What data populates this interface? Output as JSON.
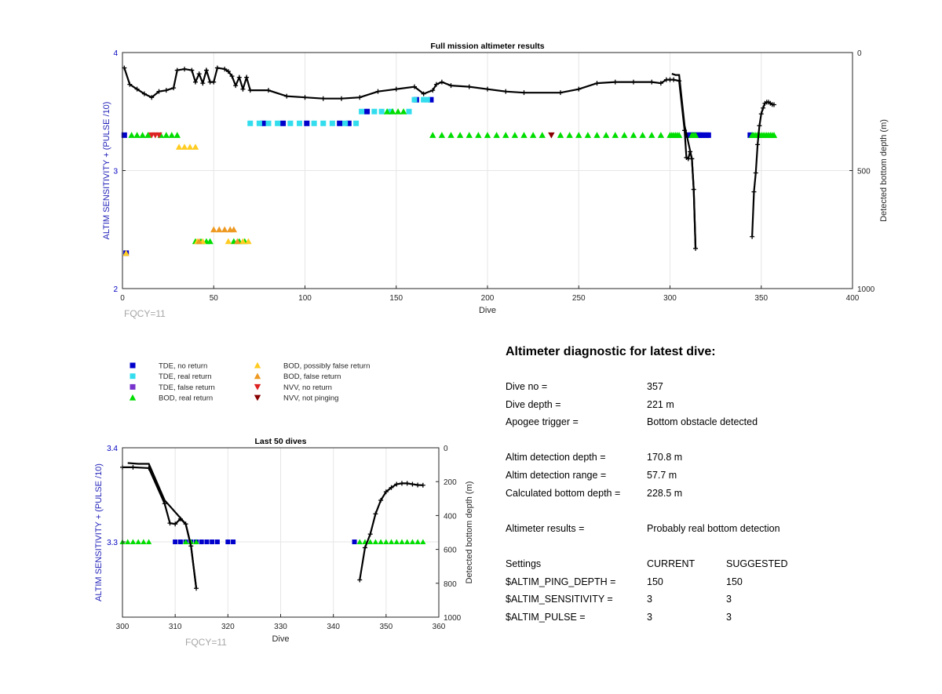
{
  "charts": [
    {
      "id": "full",
      "title": "Full mission altimeter results",
      "xlabel": "Dive",
      "ylabel_left": "ALTIM SENSITIVITY + (PULSE /10)",
      "ylabel_right": "Detected bottom depth (m)",
      "xlim": [
        0,
        400
      ],
      "xticks": [
        0,
        50,
        100,
        150,
        200,
        250,
        300,
        350,
        400
      ],
      "ylim_left": [
        2,
        4
      ],
      "yticks_left": [
        2,
        3,
        4
      ],
      "ylim_right": [
        0,
        1000
      ],
      "yticks_right": [
        0,
        500,
        1000
      ],
      "fqcy_label": "FQCY=11"
    },
    {
      "id": "last50",
      "title": "Last 50 dives",
      "xlabel": "Dive",
      "ylabel_left": "ALTIM SENSITIVITY + (PULSE /10)",
      "ylabel_right": "Detected bottom depth (m)",
      "xlim": [
        300,
        360
      ],
      "xticks": [
        300,
        310,
        320,
        330,
        340,
        350,
        360
      ],
      "ylim_left": [
        3.22,
        3.4
      ],
      "yticks_left": [
        3.3,
        3.4
      ],
      "ylim_right": [
        0,
        1000
      ],
      "yticks_right": [
        0,
        200,
        400,
        600,
        800,
        1000
      ],
      "fqcy_label": "FQCY=11"
    }
  ],
  "chart_data": {
    "type": "scatter",
    "x_label": "Dive",
    "series": [
      {
        "name": "TDE, no return",
        "marker": "square",
        "color": "#0000cc",
        "points": [
          [
            1,
            3.3
          ],
          [
            77,
            3.4
          ],
          [
            88,
            3.4
          ],
          [
            101,
            3.4
          ],
          [
            119,
            3.4
          ],
          [
            124,
            3.4
          ],
          [
            134,
            3.5
          ],
          [
            161,
            3.6
          ],
          [
            169,
            3.6
          ],
          [
            310,
            3.3
          ],
          [
            311,
            3.3
          ],
          [
            312,
            3.3
          ],
          [
            313,
            3.3
          ],
          [
            314,
            3.3
          ],
          [
            315,
            3.3
          ],
          [
            316,
            3.3
          ],
          [
            317,
            3.3
          ],
          [
            318,
            3.3
          ],
          [
            320,
            3.3
          ],
          [
            321,
            3.3
          ],
          [
            344,
            3.3
          ],
          [
            2,
            2.3
          ]
        ]
      },
      {
        "name": "TDE, real return",
        "marker": "square",
        "color": "#33ddee",
        "points": [
          [
            70,
            3.4
          ],
          [
            75,
            3.4
          ],
          [
            80,
            3.4
          ],
          [
            85,
            3.4
          ],
          [
            92,
            3.4
          ],
          [
            97,
            3.4
          ],
          [
            105,
            3.4
          ],
          [
            110,
            3.4
          ],
          [
            115,
            3.4
          ],
          [
            122,
            3.4
          ],
          [
            128,
            3.4
          ],
          [
            131,
            3.5
          ],
          [
            138,
            3.5
          ],
          [
            142,
            3.5
          ],
          [
            147,
            3.5
          ],
          [
            157,
            3.5
          ],
          [
            160,
            3.6
          ],
          [
            165,
            3.6
          ],
          [
            167,
            3.6
          ]
        ]
      },
      {
        "name": "TDE, false return",
        "marker": "square",
        "color": "#7733cc",
        "points": []
      },
      {
        "name": "BOD, real return",
        "marker": "triangle-up",
        "color": "#00dd00",
        "points": [
          [
            5,
            3.3
          ],
          [
            8,
            3.3
          ],
          [
            11,
            3.3
          ],
          [
            14,
            3.3
          ],
          [
            21,
            3.3
          ],
          [
            24,
            3.3
          ],
          [
            27,
            3.3
          ],
          [
            30,
            3.3
          ],
          [
            40,
            2.4
          ],
          [
            43,
            2.4
          ],
          [
            46,
            2.4
          ],
          [
            48,
            2.4
          ],
          [
            61,
            2.4
          ],
          [
            64,
            2.4
          ],
          [
            67,
            2.4
          ],
          [
            145,
            3.5
          ],
          [
            148,
            3.5
          ],
          [
            151,
            3.5
          ],
          [
            154,
            3.5
          ],
          [
            170,
            3.3
          ],
          [
            175,
            3.3
          ],
          [
            180,
            3.3
          ],
          [
            185,
            3.3
          ],
          [
            190,
            3.3
          ],
          [
            195,
            3.3
          ],
          [
            200,
            3.3
          ],
          [
            205,
            3.3
          ],
          [
            210,
            3.3
          ],
          [
            215,
            3.3
          ],
          [
            220,
            3.3
          ],
          [
            225,
            3.3
          ],
          [
            230,
            3.3
          ],
          [
            240,
            3.3
          ],
          [
            245,
            3.3
          ],
          [
            250,
            3.3
          ],
          [
            255,
            3.3
          ],
          [
            260,
            3.3
          ],
          [
            265,
            3.3
          ],
          [
            270,
            3.3
          ],
          [
            275,
            3.3
          ],
          [
            280,
            3.3
          ],
          [
            285,
            3.3
          ],
          [
            290,
            3.3
          ],
          [
            295,
            3.3
          ],
          [
            300,
            3.3
          ],
          [
            301,
            3.3
          ],
          [
            302,
            3.3
          ],
          [
            303,
            3.3
          ],
          [
            304,
            3.3
          ],
          [
            305,
            3.3
          ],
          [
            312,
            3.3
          ],
          [
            313,
            3.3
          ],
          [
            314,
            3.3
          ],
          [
            345,
            3.3
          ],
          [
            346,
            3.3
          ],
          [
            347,
            3.3
          ],
          [
            348,
            3.3
          ],
          [
            349,
            3.3
          ],
          [
            350,
            3.3
          ],
          [
            351,
            3.3
          ],
          [
            352,
            3.3
          ],
          [
            353,
            3.3
          ],
          [
            354,
            3.3
          ],
          [
            355,
            3.3
          ],
          [
            356,
            3.3
          ],
          [
            357,
            3.3
          ]
        ]
      },
      {
        "name": "BOD, possibly false return",
        "marker": "triangle-up",
        "color": "#ffcc22",
        "points": [
          [
            2,
            2.3
          ],
          [
            31,
            3.2
          ],
          [
            34,
            3.2
          ],
          [
            37,
            3.2
          ],
          [
            40,
            3.2
          ],
          [
            41,
            2.4
          ],
          [
            44,
            2.4
          ],
          [
            58,
            2.4
          ],
          [
            66,
            2.4
          ],
          [
            69,
            2.4
          ]
        ]
      },
      {
        "name": "BOD, false return",
        "marker": "triangle-up",
        "color": "#ee9922",
        "points": [
          [
            50,
            2.5
          ],
          [
            53,
            2.5
          ],
          [
            56,
            2.5
          ],
          [
            59,
            2.5
          ],
          [
            61,
            2.5
          ],
          [
            42,
            2.4
          ],
          [
            63,
            2.4
          ]
        ]
      },
      {
        "name": "NVV, no return",
        "marker": "triangle-down",
        "color": "#dd2222",
        "points": [
          [
            16,
            3.3
          ],
          [
            18,
            3.3
          ],
          [
            20,
            3.3
          ]
        ]
      },
      {
        "name": "NVV, not pinging",
        "marker": "triangle-down",
        "color": "#880000",
        "points": [
          [
            235,
            3.3
          ]
        ]
      },
      {
        "name": "Detected bottom depth",
        "marker": "plus-line",
        "color": "#000000",
        "axis": "right",
        "points": [
          [
            1,
            65
          ],
          [
            4,
            135
          ],
          [
            8,
            155
          ],
          [
            12,
            175
          ],
          [
            16,
            190
          ],
          [
            20,
            165
          ],
          [
            24,
            160
          ],
          [
            28,
            150
          ],
          [
            30,
            75
          ],
          [
            34,
            70
          ],
          [
            38,
            75
          ],
          [
            40,
            125
          ],
          [
            42,
            90
          ],
          [
            44,
            130
          ],
          [
            46,
            75
          ],
          [
            48,
            125
          ],
          [
            50,
            125
          ],
          [
            52,
            65
          ],
          [
            56,
            70
          ],
          [
            58,
            80
          ],
          [
            60,
            100
          ],
          [
            62,
            140
          ],
          [
            64,
            105
          ],
          [
            66,
            155
          ],
          [
            68,
            105
          ],
          [
            70,
            160
          ],
          [
            80,
            160
          ],
          [
            90,
            185
          ],
          [
            100,
            190
          ],
          [
            110,
            195
          ],
          [
            120,
            195
          ],
          [
            130,
            190
          ],
          [
            140,
            165
          ],
          [
            150,
            155
          ],
          [
            160,
            145
          ],
          [
            165,
            175
          ],
          [
            170,
            160
          ],
          [
            172,
            135
          ],
          [
            175,
            125
          ],
          [
            180,
            140
          ],
          [
            190,
            145
          ],
          [
            200,
            155
          ],
          [
            210,
            165
          ],
          [
            220,
            170
          ],
          [
            240,
            170
          ],
          [
            250,
            155
          ],
          [
            260,
            130
          ],
          [
            270,
            125
          ],
          [
            280,
            125
          ],
          [
            290,
            125
          ],
          [
            295,
            130
          ],
          [
            298,
            115
          ],
          [
            300,
            115
          ],
          [
            302,
            115
          ],
          [
            305,
            120
          ],
          [
            308,
            330
          ],
          [
            309,
            445
          ],
          [
            310,
            450
          ],
          [
            311,
            420
          ],
          [
            312,
            450
          ],
          [
            313,
            580
          ],
          [
            314,
            830
          ],
          [
            345,
            780
          ],
          [
            346,
            590
          ],
          [
            347,
            510
          ],
          [
            348,
            390
          ],
          [
            349,
            310
          ],
          [
            350,
            260
          ],
          [
            351,
            235
          ],
          [
            352,
            215
          ],
          [
            353,
            210
          ],
          [
            354,
            210
          ],
          [
            355,
            215
          ],
          [
            356,
            220
          ],
          [
            357,
            221
          ]
        ]
      }
    ],
    "second_series_line": [
      [
        301,
        90
      ],
      [
        303,
        95
      ],
      [
        305,
        95
      ],
      [
        308,
        310
      ],
      [
        312,
        450
      ],
      [
        313,
        580
      ],
      [
        314,
        830
      ]
    ],
    "ylim_left": [
      2,
      4
    ],
    "ylim_right": [
      0,
      1000
    ]
  },
  "legend": [
    {
      "label": "TDE, no return",
      "marker": "square",
      "color": "#0000cc"
    },
    {
      "label": "TDE, real return",
      "marker": "square",
      "color": "#33ddee"
    },
    {
      "label": "TDE, false return",
      "marker": "square",
      "color": "#7733cc"
    },
    {
      "label": "BOD, real return",
      "marker": "triangle-up",
      "color": "#00dd00"
    },
    {
      "label": "BOD, possibly false return",
      "marker": "triangle-up",
      "color": "#ffcc22"
    },
    {
      "label": "BOD, false return",
      "marker": "triangle-up",
      "color": "#ee9922"
    },
    {
      "label": "NVV, no return",
      "marker": "triangle-down",
      "color": "#dd2222"
    },
    {
      "label": "NVV, not pinging",
      "marker": "triangle-down",
      "color": "#880000"
    }
  ],
  "diagnostic": {
    "heading": "Altimeter diagnostic for latest dive:",
    "dive_no_label": "Dive no =",
    "dive_no": "357",
    "dive_depth_label": "Dive depth =",
    "dive_depth": "221 m",
    "apogee_label": "Apogee trigger =",
    "apogee": "Bottom obstacle detected",
    "det_depth_label": "Altim detection depth =",
    "det_depth": "170.8 m",
    "det_range_label": "Altim detection range =",
    "det_range": "57.7 m",
    "calc_depth_label": "Calculated bottom depth =",
    "calc_depth": "228.5 m",
    "results_label": "Altimeter results =",
    "results": "Probably real bottom detection",
    "settings_label": "Settings",
    "current_label": "CURRENT",
    "suggested_label": "SUGGESTED",
    "ping_label": "$ALTIM_PING_DEPTH =",
    "ping_current": "150",
    "ping_suggested": "150",
    "sens_label": "$ALTIM_SENSITIVITY =",
    "sens_current": "3",
    "sens_suggested": "3",
    "pulse_label": "$ALTIM_PULSE =",
    "pulse_current": "3",
    "pulse_suggested": "3"
  }
}
